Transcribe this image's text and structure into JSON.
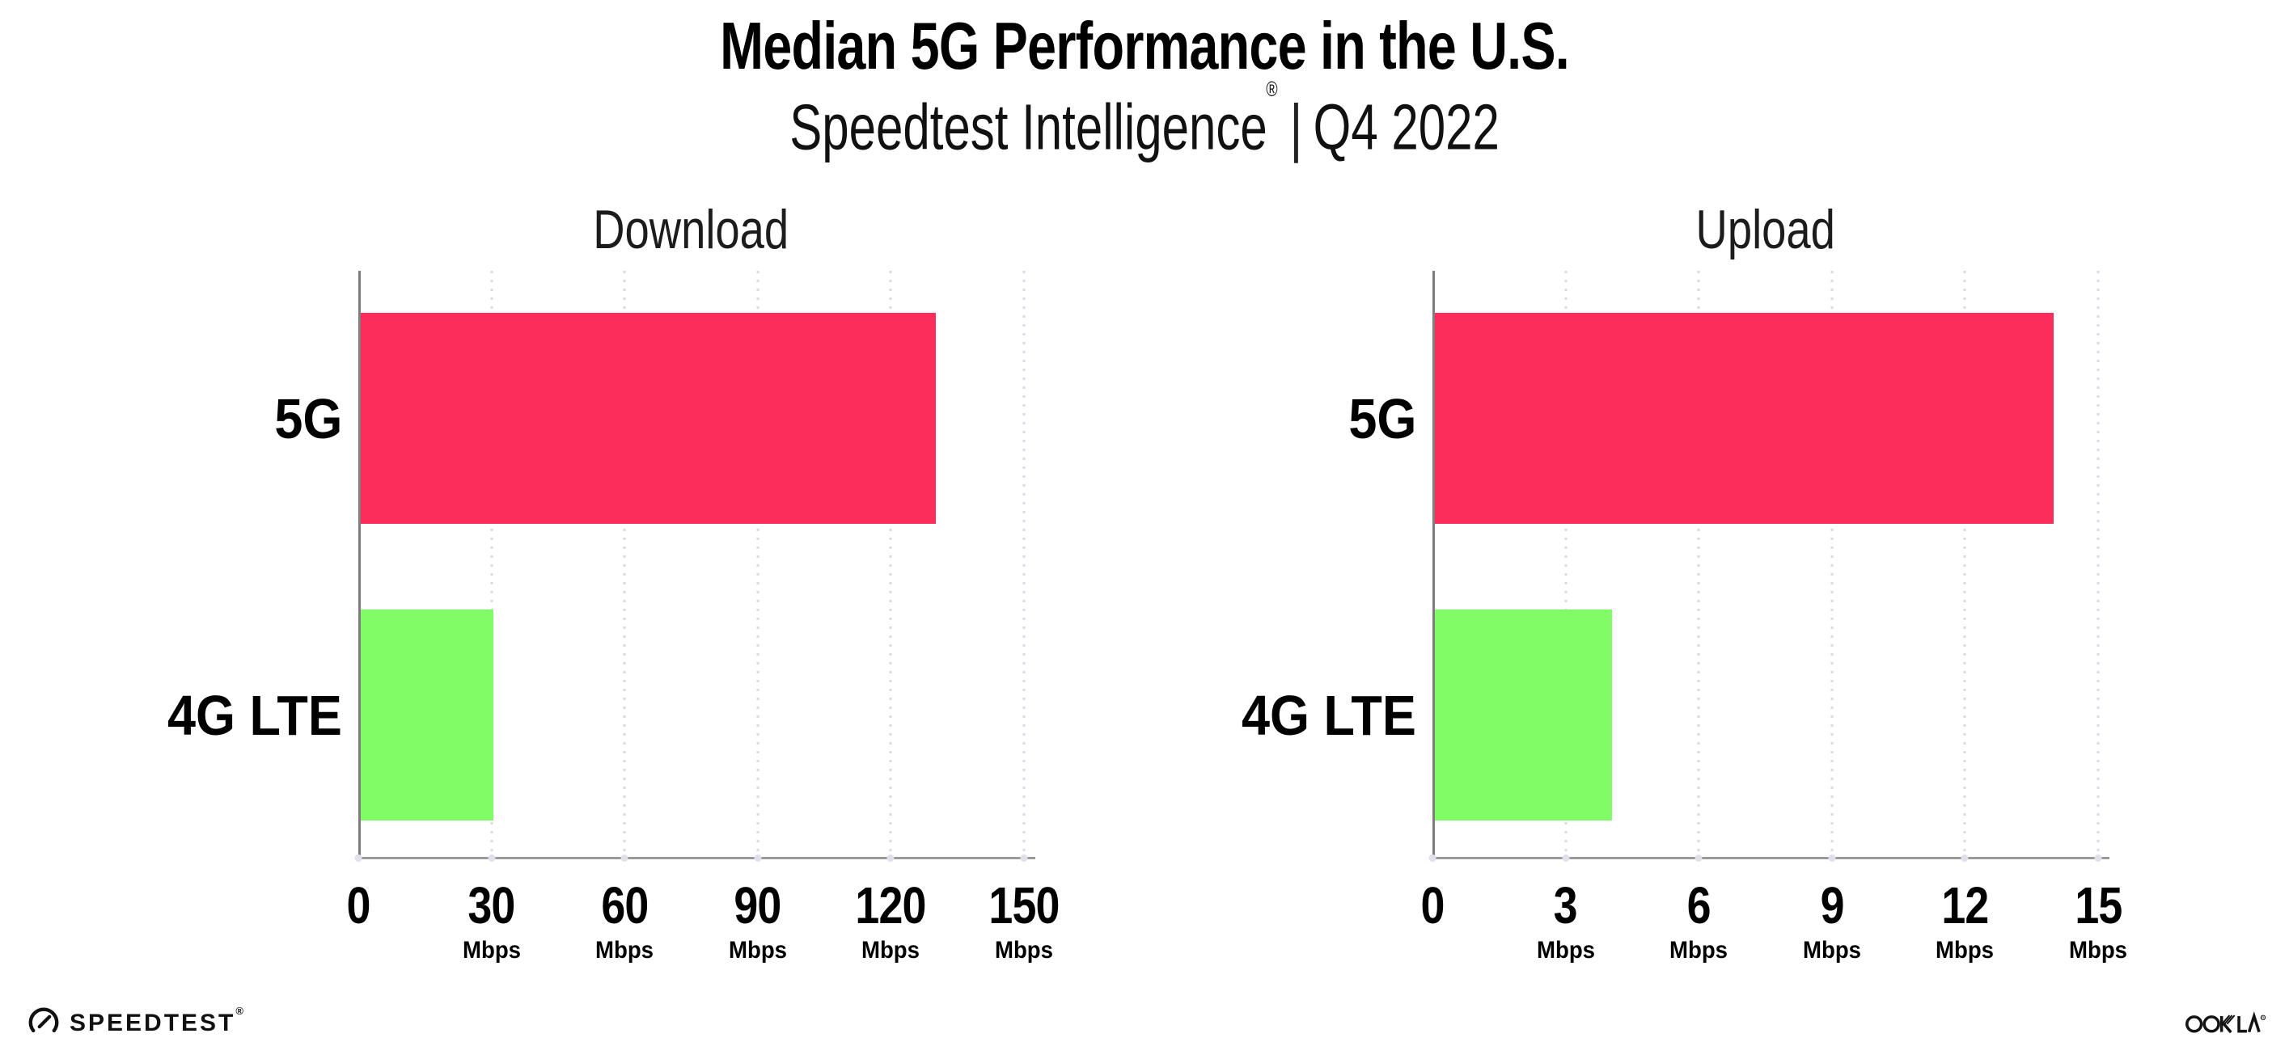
{
  "header": {
    "title": "Median 5G Performance in the U.S.",
    "subtitle_brand": "Speedtest Intelligence",
    "subtitle_reg": "®",
    "subtitle_divider": "|",
    "subtitle_period": "Q4 2022"
  },
  "chart_data": [
    {
      "type": "bar",
      "orientation": "horizontal",
      "title": "Download",
      "categories": [
        "5G",
        "4G LTE"
      ],
      "values": [
        130,
        30
      ],
      "unit": "Mbps",
      "xlim": [
        0,
        150
      ],
      "xticks": [
        0,
        30,
        60,
        90,
        120,
        150
      ],
      "bar_colors": [
        "#FC2D5A",
        "#80FC66"
      ],
      "grid": "dotted-vertical",
      "legend": "none"
    },
    {
      "type": "bar",
      "orientation": "horizontal",
      "title": "Upload",
      "categories": [
        "5G",
        "4G LTE"
      ],
      "values": [
        14,
        4
      ],
      "unit": "Mbps",
      "xlim": [
        0,
        15
      ],
      "xticks": [
        0,
        3,
        6,
        9,
        12,
        15
      ],
      "bar_colors": [
        "#FC2D5A",
        "#80FC66"
      ],
      "grid": "dotted-vertical",
      "legend": "none"
    }
  ],
  "footer": {
    "speedtest_label": "SPEEDTEST",
    "speedtest_reg": "®",
    "ookla_label": "OOKLA",
    "ookla_reg": "®"
  },
  "colors": {
    "bar_5g": "#FC2D5A",
    "bar_4g_lte": "#80FC66",
    "axis_line": "#9a9a9a",
    "gridline_dots": "#d9dae6",
    "text": "#000000"
  }
}
